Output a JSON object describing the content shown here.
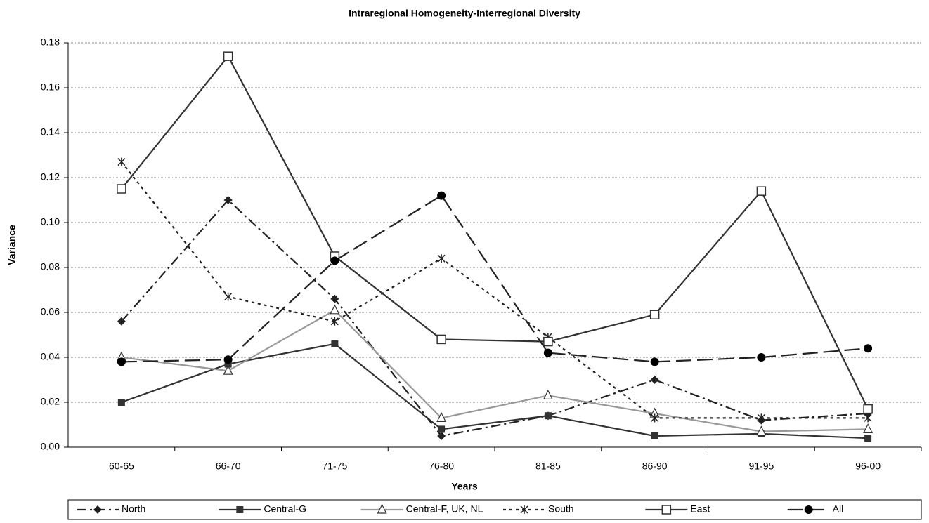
{
  "chart_data": {
    "type": "line",
    "title": "Intraregional Homogeneity-Interregional Diversity",
    "xlabel": "Years",
    "ylabel": "Variance",
    "categories": [
      "60-65",
      "66-70",
      "71-75",
      "76-80",
      "81-85",
      "86-90",
      "91-95",
      "96-00"
    ],
    "ylim": [
      0,
      0.18
    ],
    "yticks": [
      {
        "value": 0,
        "label": "0.00"
      },
      {
        "value": 0.02,
        "label": "0.02"
      },
      {
        "value": 0.04,
        "label": "0.04"
      },
      {
        "value": 0.06,
        "label": "0.06"
      },
      {
        "value": 0.08,
        "label": "0.08"
      },
      {
        "value": 0.1,
        "label": "0.10"
      },
      {
        "value": 0.12,
        "label": "0.12"
      },
      {
        "value": 0.14,
        "label": "0.14"
      },
      {
        "value": 0.16,
        "label": "0.16"
      },
      {
        "value": 0.18,
        "label": "0.18"
      }
    ],
    "grid": true,
    "legend": "bottom",
    "series": [
      {
        "name": "North",
        "color": "#222222",
        "dash": "14 5 3 5",
        "marker": "diamond",
        "values": [
          0.056,
          0.11,
          0.066,
          0.005,
          0.014,
          0.03,
          0.012,
          0.015
        ]
      },
      {
        "name": "Central-G",
        "color": "#333333",
        "dash": "",
        "marker": "square",
        "values": [
          0.02,
          0.037,
          0.046,
          0.008,
          0.014,
          0.005,
          0.006,
          0.004
        ]
      },
      {
        "name": "Central-F, UK, NL",
        "color": "#999999",
        "dash": "",
        "marker": "triangle",
        "values": [
          0.04,
          0.034,
          0.061,
          0.013,
          0.023,
          0.015,
          0.007,
          0.008
        ]
      },
      {
        "name": "South",
        "color": "#222222",
        "dash": "4 5",
        "marker": "star",
        "values": [
          0.127,
          0.067,
          0.056,
          0.084,
          0.049,
          0.013,
          0.013,
          0.013
        ]
      },
      {
        "name": "East",
        "color": "#333333",
        "dash": "",
        "marker": "open-square",
        "values": [
          0.115,
          0.174,
          0.085,
          0.048,
          0.047,
          0.059,
          0.114,
          0.017
        ]
      },
      {
        "name": "All",
        "color": "#222222",
        "dash": "22 8",
        "marker": "circle",
        "values": [
          0.038,
          0.039,
          0.083,
          0.112,
          0.042,
          0.038,
          0.04,
          0.044
        ]
      }
    ]
  }
}
